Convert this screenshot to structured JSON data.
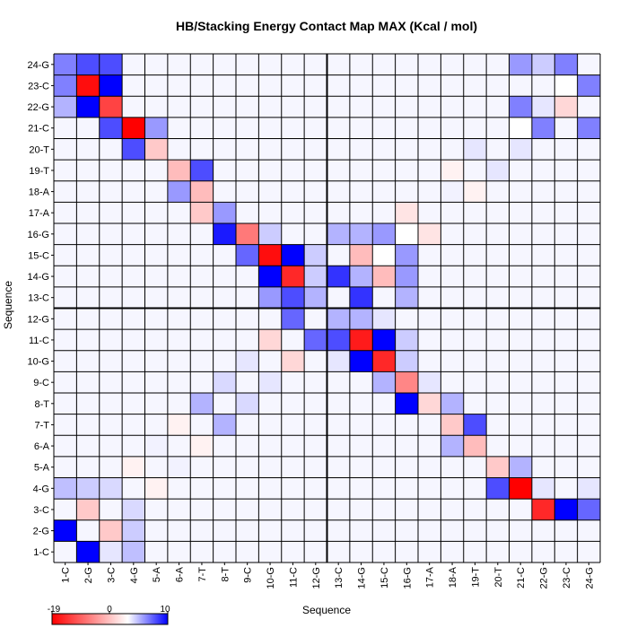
{
  "chart_data": {
    "type": "heatmap",
    "title": "HB/Stacking Energy Contact Map MAX (Kcal / mol)",
    "xlabel": "Sequence",
    "ylabel": "Sequence",
    "labels": [
      "1-C",
      "2-G",
      "3-C",
      "4-G",
      "5-A",
      "6-A",
      "7-T",
      "8-T",
      "9-C",
      "10-G",
      "11-C",
      "12-G",
      "13-C",
      "14-G",
      "15-C",
      "16-G",
      "17-A",
      "18-A",
      "19-T",
      "20-T",
      "21-C",
      "22-G",
      "23-C",
      "24-G"
    ],
    "colorbar": {
      "min": -19,
      "max": 10,
      "ticks": [
        "-19",
        "0",
        "10"
      ]
    },
    "colors": {
      "negative": "#ff0000",
      "zero": "#ffffff",
      "positive": "#0000ff",
      "grid": "#000000"
    },
    "dividers_after_index": 11,
    "cells": [
      [
        1,
        2,
        10
      ],
      [
        1,
        3,
        1
      ],
      [
        1,
        4,
        2.5
      ],
      [
        2,
        1,
        10
      ],
      [
        2,
        3,
        -4
      ],
      [
        2,
        4,
        2
      ],
      [
        3,
        2,
        -4
      ],
      [
        3,
        4,
        1.5
      ],
      [
        3,
        23,
        10
      ],
      [
        3,
        22,
        -16
      ],
      [
        3,
        24,
        6
      ],
      [
        4,
        1,
        2.5
      ],
      [
        4,
        2,
        2
      ],
      [
        4,
        3,
        1.5
      ],
      [
        4,
        5,
        -1
      ],
      [
        4,
        21,
        -19
      ],
      [
        4,
        20,
        7
      ],
      [
        4,
        22,
        1
      ],
      [
        4,
        24,
        1
      ],
      [
        5,
        4,
        -1
      ],
      [
        5,
        6,
        0.5
      ],
      [
        5,
        21,
        3
      ],
      [
        5,
        20,
        -4
      ],
      [
        6,
        5,
        0.5
      ],
      [
        6,
        7,
        -1
      ],
      [
        6,
        18,
        3
      ],
      [
        6,
        19,
        -5
      ],
      [
        7,
        6,
        -1
      ],
      [
        7,
        8,
        3
      ],
      [
        7,
        18,
        -4
      ],
      [
        7,
        19,
        7
      ],
      [
        8,
        7,
        3
      ],
      [
        8,
        9,
        1.5
      ],
      [
        8,
        16,
        10
      ],
      [
        8,
        17,
        -3
      ],
      [
        8,
        18,
        3
      ],
      [
        9,
        8,
        1.5
      ],
      [
        9,
        10,
        1
      ],
      [
        9,
        15,
        3
      ],
      [
        9,
        16,
        -9
      ],
      [
        9,
        17,
        1
      ],
      [
        10,
        9,
        1
      ],
      [
        10,
        11,
        -3
      ],
      [
        10,
        13,
        1
      ],
      [
        10,
        14,
        10
      ],
      [
        10,
        15,
        -16
      ],
      [
        10,
        16,
        2
      ],
      [
        11,
        10,
        -3
      ],
      [
        11,
        12,
        6
      ],
      [
        11,
        13,
        7
      ],
      [
        11,
        14,
        -17
      ],
      [
        11,
        15,
        10
      ],
      [
        11,
        16,
        2
      ],
      [
        12,
        11,
        6
      ],
      [
        12,
        13,
        3
      ],
      [
        12,
        14,
        3
      ],
      [
        12,
        15,
        1
      ],
      [
        13,
        10,
        4
      ],
      [
        13,
        11,
        7
      ],
      [
        13,
        12,
        3
      ],
      [
        13,
        14,
        8
      ],
      [
        13,
        16,
        3
      ],
      [
        14,
        10,
        10
      ],
      [
        14,
        11,
        -16
      ],
      [
        14,
        12,
        2
      ],
      [
        14,
        13,
        8
      ],
      [
        14,
        14,
        3
      ],
      [
        14,
        15,
        -5
      ],
      [
        14,
        16,
        4
      ],
      [
        15,
        9,
        6
      ],
      [
        15,
        10,
        -18
      ],
      [
        15,
        11,
        10
      ],
      [
        15,
        12,
        2
      ],
      [
        15,
        14,
        -5
      ],
      [
        15,
        15,
        0
      ],
      [
        15,
        16,
        4
      ],
      [
        16,
        8,
        9
      ],
      [
        16,
        9,
        -10
      ],
      [
        16,
        10,
        2
      ],
      [
        16,
        13,
        3
      ],
      [
        16,
        14,
        3
      ],
      [
        16,
        15,
        4
      ],
      [
        16,
        16,
        0
      ],
      [
        16,
        17,
        -2
      ],
      [
        17,
        7,
        -4
      ],
      [
        17,
        8,
        4
      ],
      [
        17,
        16,
        -2
      ],
      [
        18,
        6,
        4
      ],
      [
        18,
        7,
        -5
      ],
      [
        18,
        18,
        0.5
      ],
      [
        18,
        19,
        -1
      ],
      [
        19,
        6,
        -5
      ],
      [
        19,
        7,
        7
      ],
      [
        19,
        18,
        -1
      ],
      [
        19,
        20,
        1
      ],
      [
        20,
        4,
        7
      ],
      [
        20,
        5,
        -4
      ],
      [
        20,
        19,
        1
      ],
      [
        20,
        21,
        1
      ],
      [
        21,
        3,
        7
      ],
      [
        21,
        4,
        -19
      ],
      [
        21,
        5,
        4
      ],
      [
        21,
        21,
        0
      ],
      [
        21,
        22,
        5
      ],
      [
        21,
        24,
        5
      ],
      [
        22,
        1,
        3
      ],
      [
        22,
        2,
        10
      ],
      [
        22,
        3,
        -14
      ],
      [
        22,
        21,
        5
      ],
      [
        22,
        22,
        1
      ],
      [
        22,
        23,
        -3
      ],
      [
        23,
        1,
        5
      ],
      [
        23,
        2,
        -18
      ],
      [
        23,
        3,
        10
      ],
      [
        23,
        23,
        0
      ],
      [
        23,
        24,
        5
      ],
      [
        24,
        1,
        5
      ],
      [
        24,
        2,
        7
      ],
      [
        24,
        3,
        7
      ],
      [
        24,
        21,
        4
      ],
      [
        24,
        22,
        2
      ],
      [
        24,
        23,
        5
      ]
    ]
  }
}
